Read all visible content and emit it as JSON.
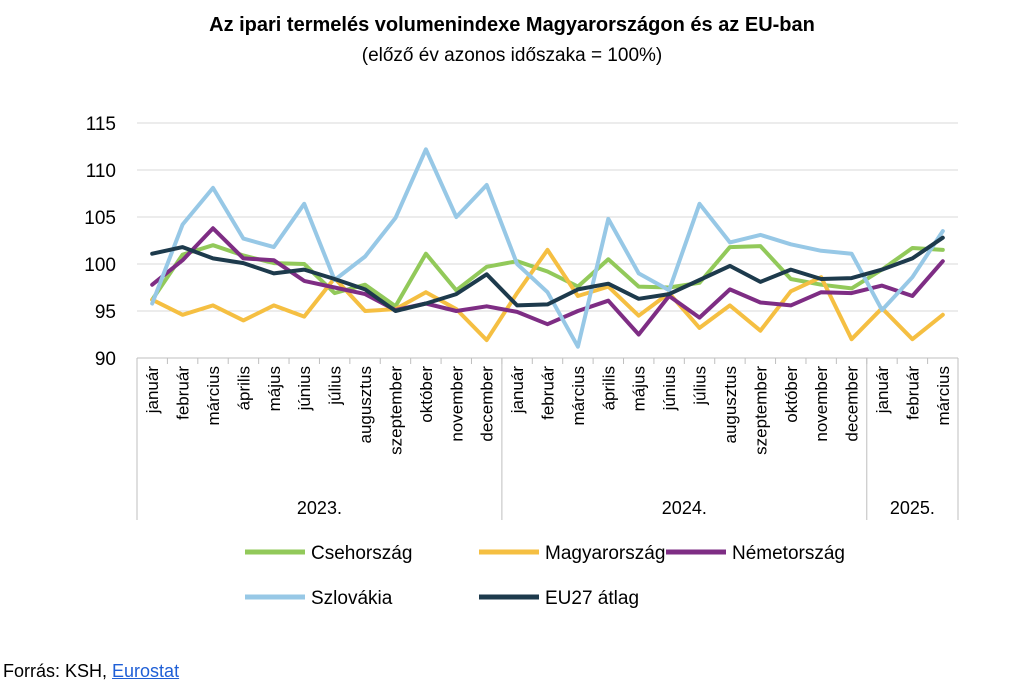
{
  "title": "Az ipari termelés volumenindexe Magyarországon és az EU-ban",
  "subtitle": "(előző év azonos időszaka = 100%)",
  "source": {
    "prefix": "Forrás: KSH, ",
    "link_text": "Eurostat"
  },
  "chart_data": {
    "type": "line",
    "title": "Az ipari termelés volumenindexe Magyarországon és az EU-ban",
    "subtitle": "(előző év azonos időszaka = 100%)",
    "xlabel": "",
    "ylabel": "",
    "ylim": [
      90,
      115
    ],
    "yticks": [
      90,
      95,
      100,
      105,
      110,
      115
    ],
    "grid": true,
    "legend_position": "bottom",
    "x": [
      "január",
      "február",
      "március",
      "április",
      "május",
      "június",
      "július",
      "augusztus",
      "szeptember",
      "október",
      "november",
      "december",
      "január",
      "február",
      "március",
      "április",
      "május",
      "június",
      "július",
      "augusztus",
      "szeptember",
      "október",
      "november",
      "december",
      "január",
      "február",
      "március"
    ],
    "year_groups": [
      {
        "label": "2023.",
        "count": 12
      },
      {
        "label": "2024.",
        "count": 12
      },
      {
        "label": "2025.",
        "count": 3
      }
    ],
    "series": [
      {
        "name": "Csehország",
        "color": "#92c95a",
        "values": [
          96.2,
          101.0,
          102.0,
          100.9,
          100.1,
          100.0,
          96.9,
          97.8,
          95.5,
          101.1,
          97.2,
          99.7,
          100.3,
          99.2,
          97.6,
          100.5,
          97.6,
          97.5,
          98.0,
          101.8,
          101.9,
          98.4,
          97.8,
          97.4,
          99.4,
          101.7,
          101.5
        ]
      },
      {
        "name": "Magyarország",
        "color": "#f5bf42",
        "values": [
          96.2,
          94.6,
          95.6,
          94.0,
          95.6,
          94.4,
          98.5,
          95.0,
          95.2,
          97.0,
          95.2,
          91.9,
          96.9,
          101.5,
          96.6,
          97.6,
          94.5,
          96.9,
          93.2,
          95.6,
          92.9,
          97.1,
          98.6,
          92.0,
          95.3,
          92.0,
          94.6
        ]
      },
      {
        "name": "Németország",
        "color": "#7e2d84",
        "values": [
          97.8,
          100.4,
          103.8,
          100.6,
          100.4,
          98.2,
          97.5,
          96.8,
          95.1,
          95.8,
          95.0,
          95.5,
          94.9,
          93.6,
          95.0,
          96.1,
          92.5,
          96.6,
          94.3,
          97.3,
          95.9,
          95.6,
          97.0,
          96.9,
          97.7,
          96.6,
          100.3
        ]
      },
      {
        "name": "Szlovákia",
        "color": "#97c8e6",
        "values": [
          95.8,
          104.2,
          108.1,
          102.7,
          101.8,
          106.4,
          98.3,
          100.8,
          104.9,
          112.2,
          105.0,
          108.4,
          100.0,
          97.0,
          91.2,
          104.8,
          99.0,
          97.2,
          106.4,
          102.3,
          103.1,
          102.1,
          101.4,
          101.1,
          95.1,
          98.6,
          103.5
        ]
      },
      {
        "name": "EU27 átlag",
        "color": "#1d3a4c",
        "values": [
          101.1,
          101.8,
          100.6,
          100.1,
          99.0,
          99.4,
          98.4,
          97.3,
          95.0,
          95.8,
          96.8,
          98.9,
          95.6,
          95.7,
          97.3,
          97.9,
          96.3,
          96.8,
          98.3,
          99.8,
          98.1,
          99.4,
          98.4,
          98.5,
          99.4,
          100.6,
          102.8
        ]
      }
    ]
  }
}
